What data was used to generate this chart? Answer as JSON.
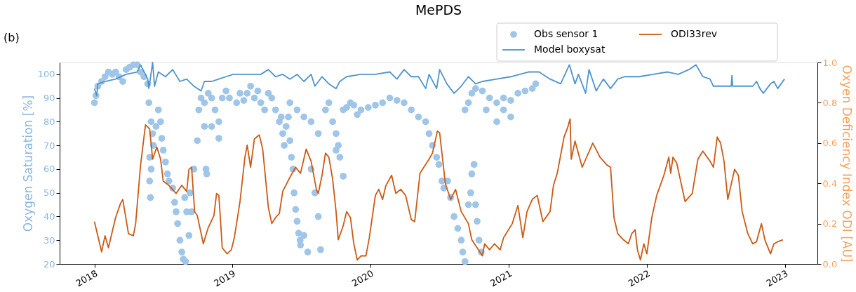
{
  "chart_data": {
    "type": "line",
    "title": "MePDS",
    "annotations": [
      "(b)"
    ],
    "ylabel": "Oxygen Saturation [%]",
    "y2label": "Oxyen Deficiency Index ODI [AU]",
    "xlim": [
      "2017-10-01",
      "2023-03-28"
    ],
    "xticks": [
      "2018",
      "2019",
      "2020",
      "2021",
      "2022",
      "2023"
    ],
    "ylim": [
      20,
      105
    ],
    "yticks": [
      20,
      30,
      40,
      50,
      60,
      70,
      80,
      90,
      100
    ],
    "y2lim": [
      0,
      1
    ],
    "y2ticks": [
      {
        "value": 0,
        "label": "0.0"
      },
      0.2,
      0.4,
      0.6,
      0.8,
      {
        "value": 1,
        "label": "1.0"
      }
    ],
    "grid": false,
    "legend": "top right",
    "series": [
      {
        "name": "Obs sensor 1",
        "type": "scatter",
        "marker": "circle",
        "color": "#9fc5e8",
        "x": [
          "2018-01-01",
          "2018-01-05",
          "2018-01-10",
          "2018-01-20",
          "2018-01-29",
          "2018-02-07",
          "2018-02-17",
          "2018-02-26",
          "2018-03-07",
          "2018-03-17",
          "2018-03-26",
          "2018-04-04",
          "2018-04-14",
          "2018-04-24",
          "2018-05-03",
          "2018-05-12",
          "2018-05-22",
          "2018-05-25",
          "2018-05-31",
          "2018-06-04",
          "2018-05-27",
          "2018-05-31",
          "2018-05-29",
          "2018-05-27",
          "2018-06-06",
          "2018-06-13",
          "2018-06-19",
          "2018-06-25",
          "2018-06-28",
          "2018-07-02",
          "2018-07-08",
          "2018-07-13",
          "2018-07-17",
          "2018-07-27",
          "2018-08-01",
          "2018-08-05",
          "2018-08-09",
          "2018-08-15",
          "2018-08-20",
          "2018-08-24",
          "2018-08-30",
          "2018-09-08",
          "2018-09-02",
          "2018-08-28",
          "2018-09-11",
          "2018-09-21",
          "2018-09-15",
          "2018-09-30",
          "2018-10-04",
          "2018-10-10",
          "2018-10-19",
          "2018-10-29",
          "2018-11-07",
          "2018-11-16",
          "2018-11-26",
          "2018-12-05",
          "2018-12-15",
          "2018-12-24",
          "2018-10-19",
          "2018-11-07",
          "2018-11-26",
          "2018-10-23",
          "2018-10-25",
          "2019-01-12",
          "2019-01-21",
          "2019-01-31",
          "2019-02-09",
          "2019-02-18",
          "2019-02-28",
          "2019-03-09",
          "2019-03-17",
          "2019-03-27",
          "2019-04-06",
          "2019-04-15",
          "2019-04-25",
          "2019-05-05",
          "2019-05-10",
          "2019-05-14",
          "2019-05-18",
          "2019-05-23",
          "2019-05-29",
          "2019-06-02",
          "2019-06-06",
          "2019-06-10",
          "2019-06-13",
          "2019-06-17",
          "2019-06-21",
          "2019-06-25",
          "2019-06-29",
          "2019-06-30",
          "2019-07-09",
          "2019-07-19",
          "2019-07-28",
          "2019-08-07",
          "2019-08-16",
          "2019-08-22",
          "2019-06-02",
          "2019-06-21",
          "2019-07-09",
          "2019-07-28",
          "2019-08-16",
          "2019-09-04",
          "2019-09-13",
          "2019-09-23",
          "2019-10-02",
          "2019-10-08",
          "2019-10-12",
          "2019-10-21",
          "2019-10-02",
          "2019-10-21",
          "2019-10-30",
          "2019-11-09",
          "2019-11-18",
          "2019-11-27",
          "2019-12-07",
          "2019-12-26",
          "2020-01-14",
          "2020-02-02",
          "2020-02-21",
          "2020-03-11",
          "2020-03-30",
          "2020-04-18",
          "2020-05-07",
          "2020-05-26",
          "2020-06-04",
          "2020-06-13",
          "2020-06-24",
          "2020-06-30",
          "2020-07-08",
          "2020-07-13",
          "2020-07-23",
          "2020-07-31",
          "2020-08-09",
          "2020-08-19",
          "2020-08-28",
          "2020-09-01",
          "2020-09-07",
          "2020-09-07",
          "2020-09-16",
          "2020-09-16",
          "2020-09-22",
          "2020-09-25",
          "2020-10-01",
          "2020-10-05",
          "2020-10-09",
          "2020-10-14",
          "2020-10-20",
          "2020-09-25",
          "2020-10-05",
          "2020-10-23",
          "2020-11-02",
          "2020-11-11",
          "2020-11-30",
          "2020-11-30",
          "2020-12-18",
          "2020-12-18",
          "2021-01-06",
          "2021-01-06",
          "2021-01-25",
          "2021-02-13",
          "2021-03-04",
          "2021-03-13"
        ],
        "values": [
          88,
          91,
          95,
          97,
          99,
          101,
          100,
          101,
          99,
          97,
          102,
          103,
          104,
          104,
          101,
          99,
          96,
          88,
          80,
          75,
          65,
          60,
          48,
          55,
          70,
          78,
          85,
          80,
          73,
          68,
          63,
          58,
          55,
          52,
          46,
          42,
          37,
          30,
          25,
          22,
          21,
          32,
          42,
          48,
          50,
          60,
          42,
          72,
          85,
          90,
          88,
          92,
          90,
          85,
          80,
          90,
          93,
          90,
          78,
          78,
          73,
          60,
          58,
          88,
          92,
          89,
          92,
          95,
          90,
          93,
          88,
          85,
          92,
          90,
          85,
          80,
          82,
          75,
          70,
          78,
          82,
          72,
          65,
          60,
          50,
          43,
          38,
          33,
          30,
          28,
          32,
          25,
          60,
          50,
          40,
          26,
          88,
          85,
          82,
          80,
          75,
          85,
          88,
          80,
          75,
          70,
          65,
          57,
          68,
          85,
          86,
          88,
          87,
          83,
          85,
          86,
          87,
          88,
          90,
          89,
          88,
          85,
          82,
          80,
          75,
          70,
          65,
          62,
          55,
          52,
          55,
          48,
          40,
          35,
          30,
          25,
          21,
          85,
          88,
          45,
          50,
          58,
          62,
          45,
          38,
          30,
          25,
          92,
          94,
          93,
          85,
          90,
          88,
          80,
          90,
          85,
          89,
          82,
          92,
          93,
          94,
          96
        ]
      },
      {
        "name": "Model boxysat",
        "marker": "none",
        "color": "#4f94cd",
        "x": [
          "2018-01-01",
          "2018-01-07",
          "2018-01-10",
          "2018-01-29",
          "2018-02-26",
          "2018-03-26",
          "2018-04-24",
          "2018-05-03",
          "2018-05-22",
          "2018-05-25",
          "2018-06-04",
          "2018-06-09",
          "2018-06-19",
          "2018-07-08",
          "2018-07-27",
          "2018-08-15",
          "2018-09-02",
          "2018-09-21",
          "2018-10-10",
          "2018-10-19",
          "2018-11-07",
          "2018-11-26",
          "2018-12-15",
          "2019-01-03",
          "2019-02-09",
          "2019-03-17",
          "2019-04-06",
          "2019-04-25",
          "2019-05-14",
          "2019-06-02",
          "2019-06-21",
          "2019-07-09",
          "2019-07-28",
          "2019-08-07",
          "2019-08-26",
          "2019-09-13",
          "2019-10-02",
          "2019-10-12",
          "2019-10-30",
          "2019-12-07",
          "2020-01-14",
          "2020-02-21",
          "2020-03-11",
          "2020-03-30",
          "2020-04-18",
          "2020-05-07",
          "2020-05-26",
          "2020-06-04",
          "2020-06-24",
          "2020-07-02",
          "2020-07-21",
          "2020-08-09",
          "2020-08-28",
          "2020-09-16",
          "2020-10-05",
          "2020-10-23",
          "2020-11-30",
          "2021-01-06",
          "2021-02-22",
          "2021-03-22",
          "2021-04-20",
          "2021-05-18",
          "2021-06-10",
          "2021-06-25",
          "2021-07-04",
          "2021-07-23",
          "2021-08-01",
          "2021-08-20",
          "2021-09-08",
          "2021-09-27",
          "2021-10-16",
          "2021-11-03",
          "2021-12-11",
          "2022-01-18",
          "2022-02-25",
          "2022-03-25",
          "2022-04-22",
          "2022-05-11",
          "2022-05-29",
          "2022-06-17",
          "2022-06-26",
          "2022-07-24",
          "2022-08-12",
          "2022-08-14",
          "2022-08-16",
          "2022-10-08",
          "2022-10-18",
          "2022-10-27",
          "2022-11-05",
          "2022-11-24",
          "2022-12-03",
          "2022-12-13",
          "2022-12-31"
        ],
        "values": [
          94,
          91,
          96,
          97,
          98,
          100,
          101,
          104,
          98,
          94,
          105,
          95,
          101,
          99,
          102,
          97,
          98,
          95,
          93,
          97,
          97,
          98,
          99,
          100,
          100,
          100,
          102,
          99,
          100,
          98,
          100,
          97,
          100,
          95,
          99,
          96,
          94,
          97,
          99,
          100,
          100,
          101,
          98,
          102,
          99,
          99,
          94,
          100,
          94,
          102,
          96,
          92,
          95,
          99,
          96,
          97,
          98,
          99,
          101,
          101,
          98,
          96,
          104,
          96,
          100,
          92,
          102,
          93,
          98,
          94,
          98,
          99,
          99,
          100,
          101,
          100,
          102,
          104,
          99,
          98,
          95,
          95,
          95,
          99.5,
          95,
          95,
          97,
          94,
          92,
          96,
          97,
          94,
          98
        ]
      },
      {
        "name": "ODI33rev",
        "axis": "y2",
        "marker": "none",
        "color": "#cc5a14",
        "x": [
          "2018-01-01",
          "2018-01-20",
          "2018-01-29",
          "2018-02-07",
          "2018-02-26",
          "2018-03-11",
          "2018-03-17",
          "2018-04-01",
          "2018-04-14",
          "2018-04-20",
          "2018-05-03",
          "2018-05-16",
          "2018-05-22",
          "2018-05-27",
          "2018-06-04",
          "2018-06-15",
          "2018-06-25",
          "2018-07-02",
          "2018-07-17",
          "2018-08-05",
          "2018-08-20",
          "2018-09-02",
          "2018-09-08",
          "2018-09-15",
          "2018-09-23",
          "2018-09-30",
          "2018-10-16",
          "2018-10-29",
          "2018-11-13",
          "2018-11-20",
          "2018-11-26",
          "2018-11-30",
          "2018-12-05",
          "2018-12-18",
          "2018-12-29",
          "2019-01-06",
          "2019-01-21",
          "2019-02-03",
          "2019-02-09",
          "2019-02-18",
          "2019-02-28",
          "2019-03-13",
          "2019-03-22",
          "2019-04-06",
          "2019-04-15",
          "2019-04-25",
          "2019-05-05",
          "2019-05-14",
          "2019-06-02",
          "2019-06-17",
          "2019-06-30",
          "2019-07-15",
          "2019-07-28",
          "2019-08-11",
          "2019-08-16",
          "2019-08-26",
          "2019-09-04",
          "2019-09-13",
          "2019-09-23",
          "2019-10-02",
          "2019-10-08",
          "2019-10-21",
          "2019-10-30",
          "2019-11-09",
          "2019-11-18",
          "2019-11-27",
          "2019-12-07",
          "2019-12-20",
          "2019-12-29",
          "2020-01-14",
          "2020-01-23",
          "2020-02-02",
          "2020-02-11",
          "2020-02-26",
          "2020-03-08",
          "2020-03-21",
          "2020-04-03",
          "2020-04-18",
          "2020-04-27",
          "2020-05-11",
          "2020-06-04",
          "2020-06-13",
          "2020-06-26",
          "2020-07-02",
          "2020-07-08",
          "2020-07-17",
          "2020-07-31",
          "2020-08-13",
          "2020-08-28",
          "2020-09-16",
          "2020-09-25",
          "2020-10-23",
          "2020-10-29",
          "2020-11-11",
          "2020-11-24",
          "2020-12-09",
          "2020-12-18",
          "2021-01-10",
          "2021-01-25",
          "2021-02-07",
          "2021-02-18",
          "2021-03-04",
          "2021-03-17",
          "2021-04-01",
          "2021-04-20",
          "2021-04-29",
          "2021-05-09",
          "2021-05-27",
          "2021-06-06",
          "2021-06-12",
          "2021-06-15",
          "2021-06-25",
          "2021-07-14",
          "2021-08-11",
          "2021-08-30",
          "2021-09-18",
          "2021-09-27",
          "2021-10-06",
          "2021-10-16",
          "2021-10-31",
          "2021-11-13",
          "2021-11-22",
          "2021-12-01",
          "2021-12-07",
          "2021-12-15",
          "2021-12-24",
          "2022-01-01",
          "2022-01-14",
          "2022-01-27",
          "2022-02-15",
          "2022-02-28",
          "2022-03-05",
          "2022-03-11",
          "2022-03-21",
          "2022-04-12",
          "2022-05-01",
          "2022-05-16",
          "2022-05-29",
          "2022-06-17",
          "2022-06-26",
          "2022-07-06",
          "2022-07-15",
          "2022-07-24",
          "2022-08-03",
          "2022-08-21",
          "2022-08-31",
          "2022-09-10",
          "2022-09-25",
          "2022-10-08",
          "2022-10-18",
          "2022-10-31",
          "2022-11-09",
          "2022-11-24",
          "2022-12-03",
          "2022-12-13",
          "2022-12-27"
        ],
        "values": [
          0.21,
          0.06,
          0.14,
          0.08,
          0.23,
          0.3,
          0.32,
          0.15,
          0.14,
          0.2,
          0.49,
          0.69,
          0.68,
          0.67,
          0.52,
          0.58,
          0.52,
          0.41,
          0.39,
          0.35,
          0.39,
          0.36,
          0.47,
          0.48,
          0.26,
          0.24,
          0.1,
          0.18,
          0.24,
          0.35,
          0.34,
          0.23,
          0.08,
          0.05,
          0.07,
          0.13,
          0.31,
          0.53,
          0.59,
          0.48,
          0.62,
          0.64,
          0.57,
          0.28,
          0.2,
          0.23,
          0.25,
          0.36,
          0.43,
          0.48,
          0.45,
          0.57,
          0.51,
          0.37,
          0.35,
          0.44,
          0.55,
          0.53,
          0.42,
          0.26,
          0.12,
          0.19,
          0.26,
          0.23,
          0.1,
          0.02,
          0.04,
          0.04,
          0.13,
          0.34,
          0.37,
          0.32,
          0.39,
          0.44,
          0.35,
          0.37,
          0.34,
          0.22,
          0.21,
          0.45,
          0.52,
          0.55,
          0.66,
          0.65,
          0.55,
          0.4,
          0.32,
          0.37,
          0.26,
          0.2,
          0.12,
          0.04,
          0.1,
          0.07,
          0.1,
          0.07,
          0.13,
          0.2,
          0.29,
          0.13,
          0.26,
          0.32,
          0.34,
          0.21,
          0.26,
          0.39,
          0.45,
          0.63,
          0.68,
          0.72,
          0.52,
          0.61,
          0.48,
          0.6,
          0.53,
          0.49,
          0.48,
          0.23,
          0.15,
          0.12,
          0.1,
          0.15,
          0.17,
          0.07,
          0.02,
          0.1,
          0.05,
          0.23,
          0.34,
          0.44,
          0.53,
          0.45,
          0.53,
          0.5,
          0.31,
          0.35,
          0.52,
          0.56,
          0.51,
          0.48,
          0.63,
          0.6,
          0.51,
          0.32,
          0.47,
          0.44,
          0.26,
          0.15,
          0.1,
          0.11,
          0.2,
          0.12,
          0.05,
          0.1,
          0.11,
          0.12
        ]
      }
    ]
  }
}
